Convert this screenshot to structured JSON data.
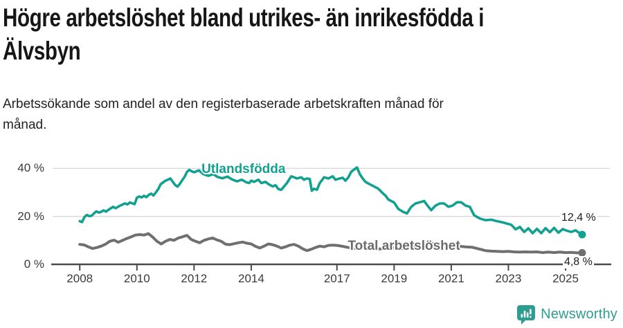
{
  "header": {
    "title_line1": "Högre arbetslöshet bland utrikes- än inrikesfödda i",
    "title_line2": "Älvsbyn",
    "subtitle_line1": "Arbetssökande som andel av den registerbaserade arbetskraften månad för",
    "subtitle_line2": "månad."
  },
  "footer": {
    "brand": "Newsworthy",
    "logo_icon": "newsworthy-speech-bubble-bar-chart-icon"
  },
  "colors": {
    "foreign_born_line": "#12a191",
    "total_line": "#6f6f6f",
    "total_label": "#6b6b6b",
    "grid": "#d8d8d8",
    "axis": "#4a4a4a",
    "tick_text": "#3a3a3a",
    "value_text": "#1c1c1c",
    "brand_teal": "#2d9d92"
  },
  "chart_data": {
    "type": "line",
    "title": "Högre arbetslöshet bland utrikes- än inrikesfödda i Älvsbyn",
    "subtitle": "Arbetssökande som andel av den registerbaserade arbetskraften månad för månad.",
    "xlabel": "",
    "ylabel": "",
    "grid": "horizontal",
    "legend_position": "inline-labels",
    "xlim": [
      2007.05,
      2026.55
    ],
    "ylim": [
      0,
      43
    ],
    "x_axis": {
      "ticks": [
        2008,
        2010,
        2012,
        2014,
        2017,
        2019,
        2021,
        2023,
        2025
      ],
      "labels": [
        "2008",
        "2010",
        "2012",
        "2014",
        "2017",
        "2019",
        "2021",
        "2023",
        "2025"
      ]
    },
    "y_axis": {
      "ticks": [
        0,
        20,
        40
      ],
      "labels": [
        "0 %",
        "20 %",
        "40 %"
      ]
    },
    "series": [
      {
        "name": "Utlandsfödda",
        "color": "#12a191",
        "stroke_width": 3.6,
        "end_value": 12.4,
        "end_label": "12,4 %",
        "end_label_offset": {
          "dx": -32,
          "dy": -33
        },
        "label_pos": {
          "year": 2012.26,
          "pct": 39.6
        },
        "points": [
          [
            2008.0,
            18.0
          ],
          [
            2008.08,
            17.6
          ],
          [
            2008.17,
            19.8
          ],
          [
            2008.25,
            20.6
          ],
          [
            2008.33,
            20.1
          ],
          [
            2008.42,
            20.3
          ],
          [
            2008.5,
            21.3
          ],
          [
            2008.58,
            22.1
          ],
          [
            2008.67,
            21.6
          ],
          [
            2008.75,
            21.9
          ],
          [
            2008.83,
            22.5
          ],
          [
            2008.92,
            22.0
          ],
          [
            2009.0,
            22.7
          ],
          [
            2009.17,
            24.0
          ],
          [
            2009.25,
            23.4
          ],
          [
            2009.42,
            24.5
          ],
          [
            2009.58,
            25.4
          ],
          [
            2009.67,
            25.0
          ],
          [
            2009.75,
            25.8
          ],
          [
            2009.92,
            25.1
          ],
          [
            2010.0,
            27.8
          ],
          [
            2010.08,
            28.3
          ],
          [
            2010.17,
            27.9
          ],
          [
            2010.25,
            28.6
          ],
          [
            2010.33,
            28.0
          ],
          [
            2010.42,
            29.0
          ],
          [
            2010.5,
            29.5
          ],
          [
            2010.58,
            28.7
          ],
          [
            2010.67,
            30.1
          ],
          [
            2010.75,
            31.4
          ],
          [
            2010.83,
            33.4
          ],
          [
            2010.92,
            34.2
          ],
          [
            2011.0,
            34.9
          ],
          [
            2011.08,
            35.3
          ],
          [
            2011.17,
            35.8
          ],
          [
            2011.25,
            34.5
          ],
          [
            2011.33,
            33.2
          ],
          [
            2011.42,
            32.4
          ],
          [
            2011.5,
            33.5
          ],
          [
            2011.58,
            35.0
          ],
          [
            2011.67,
            36.5
          ],
          [
            2011.75,
            38.5
          ],
          [
            2011.83,
            39.4
          ],
          [
            2011.92,
            38.8
          ],
          [
            2012.0,
            38.4
          ],
          [
            2012.17,
            39.2
          ],
          [
            2012.33,
            37.6
          ],
          [
            2012.5,
            36.9
          ],
          [
            2012.67,
            37.6
          ],
          [
            2012.83,
            36.4
          ],
          [
            2013.0,
            35.9
          ],
          [
            2013.17,
            36.6
          ],
          [
            2013.33,
            35.4
          ],
          [
            2013.5,
            34.6
          ],
          [
            2013.67,
            35.3
          ],
          [
            2013.83,
            34.2
          ],
          [
            2013.93,
            33.9
          ],
          [
            2014.0,
            34.9
          ],
          [
            2014.1,
            34.4
          ],
          [
            2014.25,
            35.3
          ],
          [
            2014.35,
            33.9
          ],
          [
            2014.5,
            34.4
          ],
          [
            2014.6,
            33.5
          ],
          [
            2014.75,
            32.5
          ],
          [
            2014.85,
            33.0
          ],
          [
            2014.95,
            31.4
          ],
          [
            2015.05,
            31.1
          ],
          [
            2015.15,
            32.5
          ],
          [
            2015.25,
            33.9
          ],
          [
            2015.4,
            36.7
          ],
          [
            2015.5,
            36.3
          ],
          [
            2015.6,
            35.8
          ],
          [
            2015.75,
            36.3
          ],
          [
            2015.85,
            35.3
          ],
          [
            2015.95,
            35.8
          ],
          [
            2016.05,
            35.6
          ],
          [
            2016.12,
            30.7
          ],
          [
            2016.2,
            31.5
          ],
          [
            2016.3,
            31.1
          ],
          [
            2016.4,
            33.9
          ],
          [
            2016.55,
            36.3
          ],
          [
            2016.7,
            35.8
          ],
          [
            2016.85,
            36.7
          ],
          [
            2016.95,
            35.3
          ],
          [
            2017.1,
            35.8
          ],
          [
            2017.2,
            36.1
          ],
          [
            2017.3,
            34.9
          ],
          [
            2017.4,
            36.3
          ],
          [
            2017.5,
            38.6
          ],
          [
            2017.6,
            39.5
          ],
          [
            2017.7,
            40.4
          ],
          [
            2017.8,
            37.6
          ],
          [
            2017.9,
            35.8
          ],
          [
            2018.0,
            34.4
          ],
          [
            2018.15,
            33.4
          ],
          [
            2018.3,
            32.5
          ],
          [
            2018.45,
            31.5
          ],
          [
            2018.6,
            29.7
          ],
          [
            2018.7,
            28.7
          ],
          [
            2018.8,
            27.0
          ],
          [
            2018.9,
            26.4
          ],
          [
            2019.0,
            25.8
          ],
          [
            2019.15,
            23.1
          ],
          [
            2019.3,
            22.0
          ],
          [
            2019.45,
            21.2
          ],
          [
            2019.6,
            24.0
          ],
          [
            2019.75,
            25.4
          ],
          [
            2019.9,
            25.9
          ],
          [
            2020.05,
            26.4
          ],
          [
            2020.2,
            24.0
          ],
          [
            2020.3,
            22.6
          ],
          [
            2020.45,
            24.5
          ],
          [
            2020.6,
            25.4
          ],
          [
            2020.75,
            25.4
          ],
          [
            2020.9,
            24.0
          ],
          [
            2021.05,
            24.5
          ],
          [
            2021.2,
            25.9
          ],
          [
            2021.35,
            25.9
          ],
          [
            2021.5,
            24.5
          ],
          [
            2021.65,
            24.0
          ],
          [
            2021.8,
            20.5
          ],
          [
            2021.9,
            19.8
          ],
          [
            2022.0,
            19.1
          ],
          [
            2022.2,
            18.4
          ],
          [
            2022.4,
            18.6
          ],
          [
            2022.6,
            18.0
          ],
          [
            2022.8,
            17.5
          ],
          [
            2022.95,
            17.0
          ],
          [
            2023.1,
            16.5
          ],
          [
            2023.25,
            14.6
          ],
          [
            2023.4,
            15.6
          ],
          [
            2023.55,
            13.5
          ],
          [
            2023.7,
            15.0
          ],
          [
            2023.85,
            13.0
          ],
          [
            2024.0,
            14.8
          ],
          [
            2024.15,
            13.0
          ],
          [
            2024.3,
            15.1
          ],
          [
            2024.45,
            13.4
          ],
          [
            2024.6,
            15.2
          ],
          [
            2024.75,
            13.2
          ],
          [
            2024.9,
            14.7
          ],
          [
            2025.05,
            14.0
          ],
          [
            2025.2,
            13.5
          ],
          [
            2025.35,
            14.2
          ],
          [
            2025.5,
            12.9
          ],
          [
            2025.58,
            12.4
          ]
        ]
      },
      {
        "name": "Total arbetslöshet",
        "color": "#6f6f6f",
        "label_color": "#6b6b6b",
        "stroke_width": 4,
        "end_value": 4.8,
        "end_label": "4,8 %",
        "end_label_offset": {
          "dx": -28,
          "dy": 5
        },
        "label_pos": {
          "year": 2017.38,
          "pct": 7.5
        },
        "points": [
          [
            2008.0,
            8.3
          ],
          [
            2008.15,
            8.1
          ],
          [
            2008.3,
            7.3
          ],
          [
            2008.45,
            6.6
          ],
          [
            2008.6,
            7.0
          ],
          [
            2008.75,
            7.6
          ],
          [
            2008.9,
            8.4
          ],
          [
            2009.05,
            9.6
          ],
          [
            2009.2,
            10.1
          ],
          [
            2009.35,
            9.2
          ],
          [
            2009.5,
            10.0
          ],
          [
            2009.65,
            10.8
          ],
          [
            2009.8,
            11.5
          ],
          [
            2009.95,
            12.2
          ],
          [
            2010.1,
            12.4
          ],
          [
            2010.25,
            12.2
          ],
          [
            2010.4,
            12.8
          ],
          [
            2010.55,
            11.4
          ],
          [
            2010.7,
            9.6
          ],
          [
            2010.85,
            8.5
          ],
          [
            2011.0,
            9.6
          ],
          [
            2011.15,
            10.4
          ],
          [
            2011.3,
            10.0
          ],
          [
            2011.45,
            11.0
          ],
          [
            2011.6,
            11.5
          ],
          [
            2011.75,
            12.1
          ],
          [
            2011.9,
            10.4
          ],
          [
            2012.05,
            9.6
          ],
          [
            2012.2,
            9.0
          ],
          [
            2012.35,
            10.0
          ],
          [
            2012.5,
            10.6
          ],
          [
            2012.65,
            11.0
          ],
          [
            2012.8,
            10.2
          ],
          [
            2012.95,
            9.6
          ],
          [
            2013.1,
            8.4
          ],
          [
            2013.25,
            8.2
          ],
          [
            2013.4,
            8.6
          ],
          [
            2013.55,
            9.0
          ],
          [
            2013.7,
            9.3
          ],
          [
            2013.85,
            8.8
          ],
          [
            2014.0,
            8.5
          ],
          [
            2014.15,
            7.5
          ],
          [
            2014.3,
            6.8
          ],
          [
            2014.45,
            7.6
          ],
          [
            2014.6,
            8.5
          ],
          [
            2014.75,
            8.2
          ],
          [
            2014.9,
            7.6
          ],
          [
            2015.05,
            6.8
          ],
          [
            2015.2,
            7.3
          ],
          [
            2015.35,
            8.0
          ],
          [
            2015.5,
            8.3
          ],
          [
            2015.65,
            7.6
          ],
          [
            2015.8,
            6.5
          ],
          [
            2015.95,
            5.7
          ],
          [
            2016.1,
            6.3
          ],
          [
            2016.25,
            7.0
          ],
          [
            2016.4,
            7.6
          ],
          [
            2016.55,
            7.3
          ],
          [
            2016.7,
            7.9
          ],
          [
            2016.85,
            8.0
          ],
          [
            2017.0,
            7.9
          ],
          [
            2017.2,
            7.5
          ],
          [
            2017.4,
            7.0
          ],
          [
            2017.6,
            6.6
          ],
          [
            2017.8,
            7.0
          ],
          [
            2018.0,
            7.3
          ],
          [
            2018.25,
            6.8
          ],
          [
            2018.5,
            6.4
          ],
          [
            2018.75,
            6.8
          ],
          [
            2019.0,
            7.0
          ],
          [
            2019.25,
            6.6
          ],
          [
            2019.5,
            6.9
          ],
          [
            2019.75,
            7.2
          ],
          [
            2020.0,
            7.6
          ],
          [
            2020.25,
            8.4
          ],
          [
            2020.5,
            8.8
          ],
          [
            2020.75,
            8.4
          ],
          [
            2021.0,
            8.0
          ],
          [
            2021.25,
            7.6
          ],
          [
            2021.5,
            7.3
          ],
          [
            2021.75,
            7.1
          ],
          [
            2021.9,
            6.6
          ],
          [
            2022.05,
            6.2
          ],
          [
            2022.2,
            5.7
          ],
          [
            2022.4,
            5.5
          ],
          [
            2022.6,
            5.4
          ],
          [
            2022.8,
            5.3
          ],
          [
            2023.0,
            5.4
          ],
          [
            2023.2,
            5.2
          ],
          [
            2023.4,
            5.1
          ],
          [
            2023.6,
            5.2
          ],
          [
            2023.8,
            5.1
          ],
          [
            2024.0,
            5.2
          ],
          [
            2024.2,
            4.9
          ],
          [
            2024.4,
            5.1
          ],
          [
            2024.6,
            4.9
          ],
          [
            2024.8,
            5.1
          ],
          [
            2025.0,
            4.9
          ],
          [
            2025.2,
            5.0
          ],
          [
            2025.4,
            4.8
          ],
          [
            2025.58,
            4.8
          ]
        ]
      }
    ]
  }
}
